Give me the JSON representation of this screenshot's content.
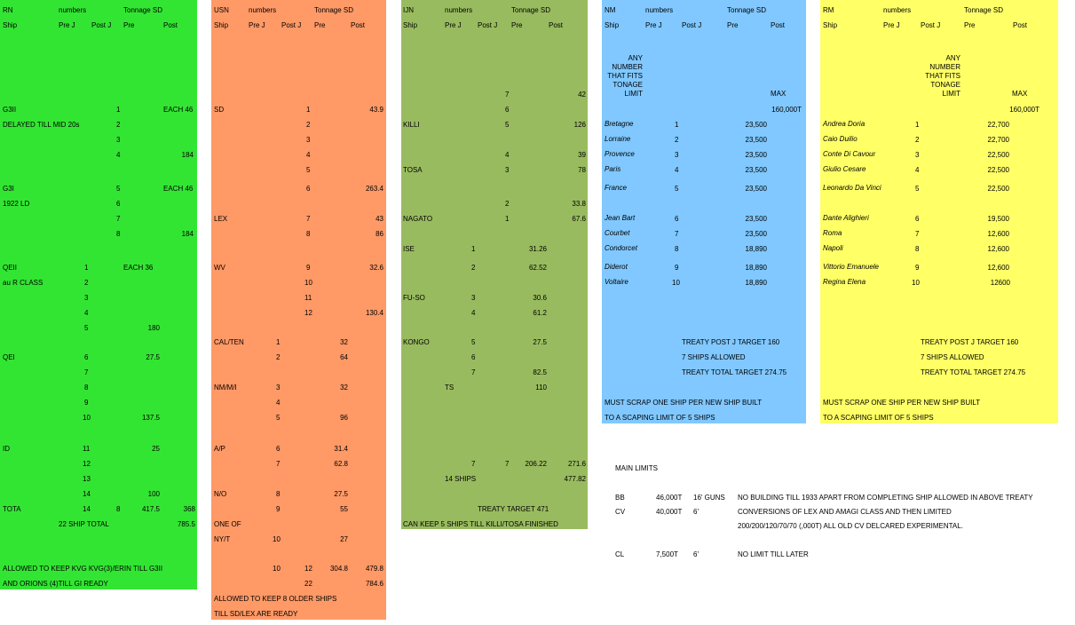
{
  "colors": {
    "rn": "#33e533",
    "usn": "#ff9966",
    "ijn": "#99bb5f",
    "nm": "#80c8ff",
    "rm": "#ffff66"
  },
  "headers": {
    "rn": [
      "RN",
      "numbers",
      "Tonnage SD",
      "Ship",
      "Pre J",
      "Post J",
      "Pre",
      "Post"
    ],
    "usn": [
      "USN",
      "numbers",
      "Tonnage SD",
      "Ship",
      "Pre J",
      "Post J",
      "Pre",
      "Post"
    ],
    "ijn": [
      "IJN",
      "numbers",
      "Tonnage SD",
      "Ship",
      "Pre J",
      "Post J",
      "Pre",
      "Post"
    ],
    "nm": [
      "NM",
      "numbers",
      "Tonnage SD",
      "Ship",
      "Pre J",
      "Post J",
      "Pre",
      "Post"
    ],
    "rm": [
      "RM",
      "numbers",
      "Tonnage SD",
      "Ship",
      "Pre J",
      "Post J",
      "Pre",
      "Post"
    ]
  },
  "rn": {
    "r0": [
      "G3II",
      "1",
      "EACH 46"
    ],
    "r1": [
      "DELAYED TILL MID 20s",
      "2"
    ],
    "r2": [
      "3"
    ],
    "r3": [
      "4",
      "184"
    ],
    "r4": [
      "G3I",
      "5",
      "EACH 46"
    ],
    "r5": [
      "1922 LD",
      "6"
    ],
    "r6": [
      "7"
    ],
    "r7": [
      "8",
      "184"
    ],
    "r8": [
      "QEII",
      "1",
      "EACH 36"
    ],
    "r9": [
      "au R CLASS",
      "2"
    ],
    "r10": [
      "3"
    ],
    "r11": [
      "4"
    ],
    "r12": [
      "5",
      "180"
    ],
    "r13": [
      "QEI",
      "6",
      "27.5"
    ],
    "r14": [
      "7"
    ],
    "r15": [
      "8"
    ],
    "r16": [
      "9"
    ],
    "r17": [
      "10",
      "137.5"
    ],
    "r18": [
      "ID",
      "11",
      "25"
    ],
    "r19": [
      "12"
    ],
    "r20": [
      "13"
    ],
    "r21": [
      "14",
      "100"
    ],
    "r22": [
      "TOTA",
      "14",
      "8",
      "417.5",
      "368"
    ],
    "r23": [
      "22 SHIP TOTAL",
      "785.5"
    ],
    "notes": [
      "ALLOWED TO KEEP KVG KVG(3)/ERIN TILL G3II",
      "AND ORIONS (4)TILL GI READY"
    ]
  },
  "usn": {
    "r0": [
      "SD",
      "1",
      "43.9"
    ],
    "r1": [
      "2"
    ],
    "r2": [
      "3"
    ],
    "r3": [
      "4"
    ],
    "r4": [
      "5"
    ],
    "r5": [
      "6",
      "263.4"
    ],
    "r6": [
      "LEX",
      "7",
      "43"
    ],
    "r7": [
      "8",
      "86"
    ],
    "r8": [
      "WV",
      "9",
      "32.6"
    ],
    "r9": [
      "10"
    ],
    "r10": [
      "11"
    ],
    "r11": [
      "12",
      "130.4"
    ],
    "r12": [
      "CAL/TEN",
      "1",
      "32"
    ],
    "r13": [
      "2",
      "64"
    ],
    "r14": [
      "NM/M/I",
      "3",
      "32"
    ],
    "r15": [
      "4"
    ],
    "r16": [
      "5",
      "96"
    ],
    "r17": [
      "A/P",
      "6",
      "31.4"
    ],
    "r18": [
      "7",
      "62.8"
    ],
    "r19": [
      "N/O",
      "8",
      "27.5"
    ],
    "r20": [
      "9",
      "55"
    ],
    "r21": [
      "ONE OF"
    ],
    "r22": [
      "NY/T",
      "10",
      "27"
    ],
    "r23": [
      "10",
      "12",
      "304.8",
      "479.8"
    ],
    "r24": [
      "22",
      "784.6"
    ],
    "notes": [
      "ALLOWED TO KEEP 8 OLDER SHIPS",
      "TILL SD/LEX ARE READY"
    ]
  },
  "ijn": {
    "r0": [
      "7",
      "42"
    ],
    "r1": [
      "6"
    ],
    "r2": [
      "KILLI",
      "5",
      "126"
    ],
    "r3": [
      "4",
      "39"
    ],
    "r4": [
      "TOSA",
      "3",
      "78"
    ],
    "r5": [
      "2",
      "33.8"
    ],
    "r6": [
      "NAGATO",
      "1",
      "67.6"
    ],
    "r7": [
      "ISE",
      "1",
      "31.26"
    ],
    "r8": [
      "2",
      "62.52"
    ],
    "r9": [
      "FU-SO",
      "3",
      "30.6"
    ],
    "r10": [
      "4",
      "61.2"
    ],
    "r11": [
      "KONGO",
      "5",
      "27.5"
    ],
    "r12": [
      "6"
    ],
    "r13": [
      "7",
      "82.5"
    ],
    "r14": [
      "TS",
      "110"
    ],
    "r15": [
      "7",
      "7",
      "206.22",
      "271.6"
    ],
    "r16": [
      "14 SHIPS",
      "477.82"
    ],
    "r17": [
      "TREATY TARGET 471"
    ],
    "notes": [
      "CAN KEEP 5 SHIPS TILL KILLI/TOSA FINISHED"
    ]
  },
  "nm": {
    "any": [
      "ANY",
      "NUMBER",
      "THAT FITS",
      "TONAGE",
      "LIMIT"
    ],
    "max": [
      "MAX",
      "160,000T"
    ],
    "ships": [
      [
        "Bretagne",
        "1",
        "23,500"
      ],
      [
        "Lorraine",
        "2",
        "23,500"
      ],
      [
        "Provence",
        "3",
        "23,500"
      ],
      [
        "Paris",
        "4",
        "23,500"
      ],
      [
        "France",
        "5",
        "23,500"
      ],
      [
        "Jean Bart",
        "6",
        "23,500"
      ],
      [
        "Courbet",
        "7",
        "23,500"
      ],
      [
        "Condorcet",
        "8",
        "18,890"
      ],
      [
        "Diderot",
        "9",
        "18,890"
      ],
      [
        "Voltaire",
        "10",
        "18,890"
      ]
    ],
    "treaty": [
      "TREATY POST J TARGET 160",
      "7 SHIPS ALLOWED",
      "TREATY TOTAL TARGET 274.75"
    ],
    "notes": [
      "MUST SCRAP ONE SHIP PER NEW SHIP BUILT",
      "TO A SCAPING LIMIT OF 5 SHIPS"
    ]
  },
  "rm": {
    "any": [
      "ANY",
      "NUMBER",
      "THAT FITS",
      "TONAGE",
      "LIMIT"
    ],
    "max": [
      "MAX",
      "160,000T"
    ],
    "ships": [
      [
        "Andrea Doria",
        "1",
        "22,700"
      ],
      [
        "Caio Duilio",
        "2",
        "22,700"
      ],
      [
        "Conte Di Cavour",
        "3",
        "22,500"
      ],
      [
        "Giulio Cesare",
        "4",
        "22,500"
      ],
      [
        "Leonardo Da Vinci",
        "5",
        "22,500"
      ],
      [
        "Dante Alighieri",
        "6",
        "19,500"
      ],
      [
        "Roma",
        "7",
        "12,600"
      ],
      [
        "Napoli",
        "8",
        "12,600"
      ],
      [
        "Vittorio Emanuele",
        "9",
        "12,600"
      ],
      [
        "Regina Elena",
        "10",
        "12600"
      ]
    ],
    "treaty": [
      "TREATY POST J TARGET 160",
      "7 SHIPS ALLOWED",
      "TREATY TOTAL TARGET 274.75"
    ],
    "notes": [
      "MUST SCRAP ONE SHIP PER NEW SHIP BUILT",
      "TO A SCAPING LIMIT OF 5 SHIPS"
    ]
  },
  "limits": {
    "title": "MAIN LIMITS",
    "bb": [
      "BB",
      "46,000T",
      "16' GUNS",
      "NO BUILDING TILL 1933 APART FROM COMPLETING SHIP ALLOWED IN ABOVE TREATY"
    ],
    "cv": [
      "CV",
      "40,000T",
      "6'",
      "CONVERSIONS OF LEX AND AMAGI CLASS AND THEN LIMITED"
    ],
    "cv2": "200/200/120/70/70 (,000T) ALL OLD CV DELCARED EXPERIMENTAL.",
    "cl": [
      "CL",
      "7,500T",
      "6'",
      "NO LIMIT TILL LATER"
    ]
  }
}
